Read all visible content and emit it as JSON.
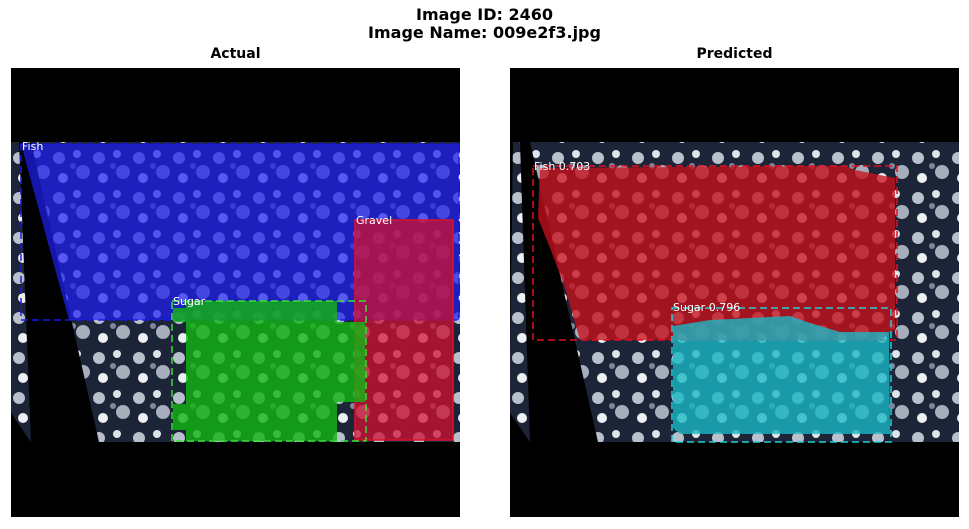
{
  "figure": {
    "title_line1": "Image ID: 2460",
    "title_line2": "Image Name: 009e2f3.jpg"
  },
  "panels": [
    {
      "title": "Actual",
      "annotations": [
        {
          "label": "Fish",
          "color": "#0000ff"
        },
        {
          "label": "Gravel",
          "color": "#ff0000"
        },
        {
          "label": "Sugar",
          "color": "#00ff00"
        }
      ]
    },
    {
      "title": "Predicted",
      "annotations": [
        {
          "label": "Fish 0.703",
          "color": "#ff0000"
        },
        {
          "label": "Sugar 0.796",
          "color": "#00cccc"
        }
      ]
    }
  ]
}
